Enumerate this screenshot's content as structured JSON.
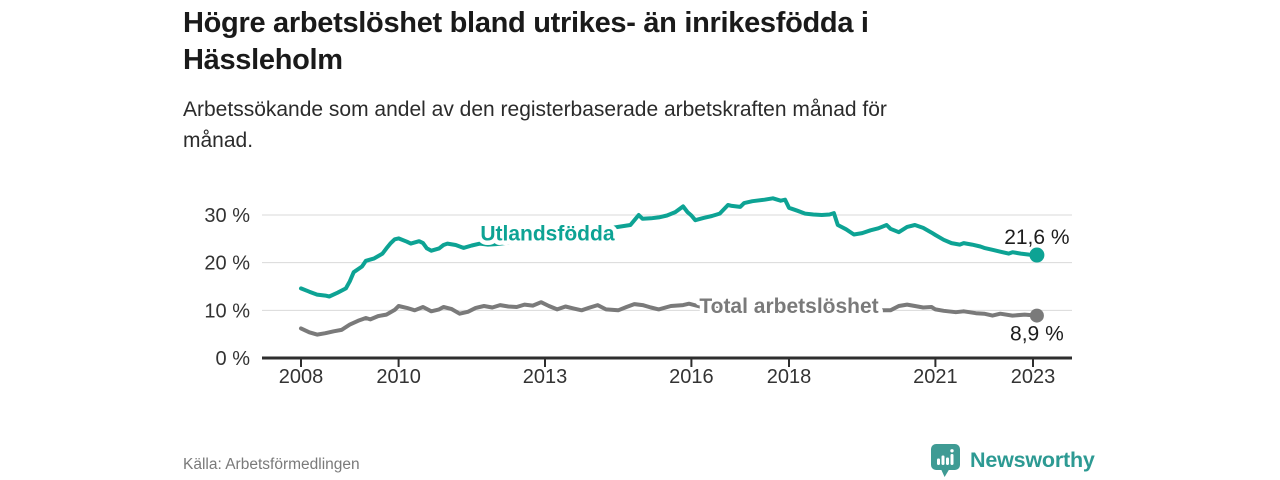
{
  "header": {
    "title_lines": [
      "Högre arbetslöshet bland utrikes- än inrikesfödda i",
      "Hässleholm"
    ],
    "subtitle_lines": [
      "Arbetssökande som andel av den registerbaserade arbetskraften månad för",
      "månad."
    ]
  },
  "footer": {
    "source": "Källa: Arbetsförmedlingen",
    "brand": "Newsworthy"
  },
  "colors": {
    "accent_teal": "#0da394",
    "line_gray": "#7a7a7a",
    "grid": "#d9d9d9",
    "axis": "#2e2e2e",
    "tick_label": "#333333",
    "value_label": "#1d1d1d",
    "brand_text": "#2d9a93",
    "brand_icon": "#3f9b94"
  },
  "chart_data": {
    "type": "line",
    "unit": "%",
    "grid": "horizontal",
    "xlim": [
      2007.2,
      2023.8
    ],
    "ylim": [
      0,
      37
    ],
    "yticks": [
      0,
      10,
      20,
      30
    ],
    "ytick_labels": [
      "0 %",
      "10 %",
      "20 %",
      "30 %"
    ],
    "xticks": [
      2008,
      2010,
      2013,
      2016,
      2018,
      2021,
      2023
    ],
    "xtick_labels": [
      "2008",
      "2010",
      "2013",
      "2016",
      "2018",
      "2021",
      "2023"
    ],
    "series": [
      {
        "name": "Utlandsfödda",
        "color": "#0da394",
        "end_label": "21,6 %",
        "end_value": 21.6,
        "label_anchor": [
          2013.05,
          24.6
        ],
        "points": [
          [
            2008.0,
            14.6
          ],
          [
            2008.17,
            13.9
          ],
          [
            2008.33,
            13.3
          ],
          [
            2008.5,
            13.1
          ],
          [
            2008.58,
            12.9
          ],
          [
            2008.75,
            13.7
          ],
          [
            2008.92,
            14.6
          ],
          [
            2009.0,
            16.1
          ],
          [
            2009.08,
            18.0
          ],
          [
            2009.25,
            19.2
          ],
          [
            2009.33,
            20.4
          ],
          [
            2009.5,
            20.9
          ],
          [
            2009.67,
            21.9
          ],
          [
            2009.75,
            23.0
          ],
          [
            2009.83,
            24.0
          ],
          [
            2009.92,
            24.9
          ],
          [
            2010.0,
            25.1
          ],
          [
            2010.17,
            24.4
          ],
          [
            2010.25,
            24.0
          ],
          [
            2010.42,
            24.5
          ],
          [
            2010.5,
            24.1
          ],
          [
            2010.58,
            23.0
          ],
          [
            2010.67,
            22.5
          ],
          [
            2010.83,
            23.0
          ],
          [
            2010.92,
            23.7
          ],
          [
            2011.0,
            24.0
          ],
          [
            2011.17,
            23.7
          ],
          [
            2011.33,
            23.1
          ],
          [
            2011.5,
            23.6
          ],
          [
            2011.67,
            24.0
          ],
          [
            2011.83,
            23.8
          ],
          [
            2012.0,
            23.9
          ],
          [
            2012.25,
            24.2
          ],
          [
            2012.5,
            24.5
          ],
          [
            2012.75,
            24.8
          ],
          [
            2013.0,
            25.2
          ],
          [
            2013.25,
            25.6
          ],
          [
            2013.5,
            26.0
          ],
          [
            2013.75,
            26.4
          ],
          [
            2014.0,
            26.8
          ],
          [
            2014.25,
            27.1
          ],
          [
            2014.5,
            27.5
          ],
          [
            2014.75,
            27.9
          ],
          [
            2014.92,
            30.0
          ],
          [
            2015.0,
            29.2
          ],
          [
            2015.17,
            29.3
          ],
          [
            2015.33,
            29.5
          ],
          [
            2015.5,
            29.9
          ],
          [
            2015.67,
            30.6
          ],
          [
            2015.83,
            31.8
          ],
          [
            2015.92,
            30.6
          ],
          [
            2016.0,
            29.9
          ],
          [
            2016.08,
            28.9
          ],
          [
            2016.25,
            29.4
          ],
          [
            2016.42,
            29.8
          ],
          [
            2016.58,
            30.3
          ],
          [
            2016.75,
            32.1
          ],
          [
            2016.83,
            31.9
          ],
          [
            2017.0,
            31.7
          ],
          [
            2017.08,
            32.5
          ],
          [
            2017.25,
            32.9
          ],
          [
            2017.5,
            33.2
          ],
          [
            2017.67,
            33.5
          ],
          [
            2017.83,
            33.0
          ],
          [
            2017.92,
            33.2
          ],
          [
            2018.0,
            31.5
          ],
          [
            2018.17,
            30.9
          ],
          [
            2018.33,
            30.3
          ],
          [
            2018.5,
            30.1
          ],
          [
            2018.67,
            30.0
          ],
          [
            2018.83,
            30.1
          ],
          [
            2018.92,
            30.4
          ],
          [
            2019.0,
            27.9
          ],
          [
            2019.17,
            27.0
          ],
          [
            2019.33,
            25.9
          ],
          [
            2019.5,
            26.2
          ],
          [
            2019.67,
            26.8
          ],
          [
            2019.83,
            27.2
          ],
          [
            2020.0,
            27.9
          ],
          [
            2020.08,
            27.1
          ],
          [
            2020.25,
            26.4
          ],
          [
            2020.42,
            27.5
          ],
          [
            2020.58,
            27.9
          ],
          [
            2020.75,
            27.3
          ],
          [
            2020.92,
            26.3
          ],
          [
            2021.0,
            25.8
          ],
          [
            2021.17,
            24.8
          ],
          [
            2021.33,
            24.1
          ],
          [
            2021.5,
            23.8
          ],
          [
            2021.58,
            24.1
          ],
          [
            2021.75,
            23.8
          ],
          [
            2021.92,
            23.4
          ],
          [
            2022.0,
            23.1
          ],
          [
            2022.17,
            22.7
          ],
          [
            2022.33,
            22.3
          ],
          [
            2022.5,
            21.9
          ],
          [
            2022.58,
            22.2
          ],
          [
            2022.75,
            21.9
          ],
          [
            2022.92,
            21.7
          ],
          [
            2023.08,
            21.6
          ]
        ]
      },
      {
        "name": "Total arbetslöshet",
        "color": "#7a7a7a",
        "end_label": "8,9 %",
        "end_value": 8.9,
        "label_anchor": [
          2018.0,
          9.4
        ],
        "points": [
          [
            2008.0,
            6.2
          ],
          [
            2008.17,
            5.4
          ],
          [
            2008.33,
            4.9
          ],
          [
            2008.5,
            5.2
          ],
          [
            2008.67,
            5.6
          ],
          [
            2008.83,
            5.9
          ],
          [
            2009.0,
            7.0
          ],
          [
            2009.17,
            7.8
          ],
          [
            2009.33,
            8.4
          ],
          [
            2009.42,
            8.1
          ],
          [
            2009.58,
            8.8
          ],
          [
            2009.75,
            9.1
          ],
          [
            2009.92,
            10.1
          ],
          [
            2010.0,
            10.9
          ],
          [
            2010.17,
            10.5
          ],
          [
            2010.33,
            10.0
          ],
          [
            2010.5,
            10.7
          ],
          [
            2010.67,
            9.8
          ],
          [
            2010.83,
            10.2
          ],
          [
            2010.92,
            10.7
          ],
          [
            2011.08,
            10.3
          ],
          [
            2011.25,
            9.3
          ],
          [
            2011.42,
            9.7
          ],
          [
            2011.58,
            10.5
          ],
          [
            2011.75,
            10.9
          ],
          [
            2011.92,
            10.6
          ],
          [
            2012.08,
            11.1
          ],
          [
            2012.25,
            10.8
          ],
          [
            2012.42,
            10.7
          ],
          [
            2012.58,
            11.2
          ],
          [
            2012.75,
            11.0
          ],
          [
            2012.92,
            11.7
          ],
          [
            2013.08,
            10.9
          ],
          [
            2013.25,
            10.2
          ],
          [
            2013.42,
            10.8
          ],
          [
            2013.58,
            10.4
          ],
          [
            2013.75,
            10.0
          ],
          [
            2013.92,
            10.6
          ],
          [
            2014.08,
            11.1
          ],
          [
            2014.25,
            10.2
          ],
          [
            2014.5,
            10.0
          ],
          [
            2014.67,
            10.7
          ],
          [
            2014.83,
            11.3
          ],
          [
            2015.0,
            11.1
          ],
          [
            2015.17,
            10.6
          ],
          [
            2015.33,
            10.2
          ],
          [
            2015.58,
            10.9
          ],
          [
            2015.83,
            11.1
          ],
          [
            2015.95,
            11.4
          ],
          [
            2016.17,
            10.8
          ],
          [
            2016.42,
            10.4
          ],
          [
            2016.67,
            10.9
          ],
          [
            2016.92,
            11.1
          ],
          [
            2017.17,
            10.7
          ],
          [
            2017.42,
            10.4
          ],
          [
            2017.67,
            10.8
          ],
          [
            2017.92,
            10.5
          ],
          [
            2018.17,
            10.2
          ],
          [
            2018.42,
            10.5
          ],
          [
            2018.67,
            10.1
          ],
          [
            2018.92,
            10.3
          ],
          [
            2019.17,
            10.0
          ],
          [
            2019.42,
            10.2
          ],
          [
            2019.67,
            9.9
          ],
          [
            2019.92,
            10.0
          ],
          [
            2020.08,
            10.0
          ],
          [
            2020.25,
            10.9
          ],
          [
            2020.42,
            11.2
          ],
          [
            2020.58,
            10.9
          ],
          [
            2020.75,
            10.6
          ],
          [
            2020.92,
            10.7
          ],
          [
            2021.0,
            10.2
          ],
          [
            2021.17,
            9.9
          ],
          [
            2021.42,
            9.6
          ],
          [
            2021.58,
            9.8
          ],
          [
            2021.83,
            9.4
          ],
          [
            2022.0,
            9.3
          ],
          [
            2022.17,
            8.9
          ],
          [
            2022.33,
            9.3
          ],
          [
            2022.58,
            8.9
          ],
          [
            2022.83,
            9.1
          ],
          [
            2023.08,
            8.9
          ]
        ]
      }
    ]
  }
}
